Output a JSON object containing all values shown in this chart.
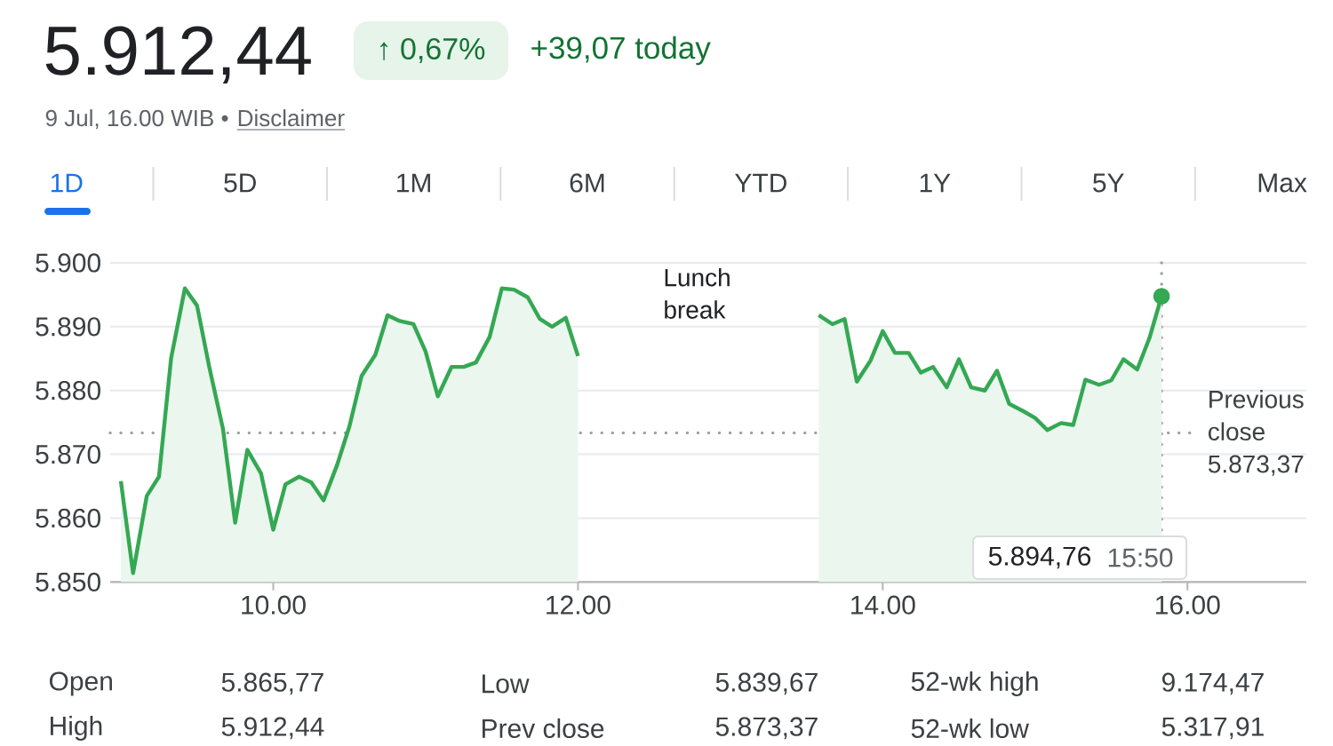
{
  "chart_data": {
    "type": "area",
    "title": "5.912,44",
    "subtitle": "+39,07 today",
    "annotations": [
      "↑ 0,67%",
      "9 Jul, 16.00 WIB •",
      "Disclaimer",
      "1D",
      "5D",
      "1M",
      "6M",
      "YTD",
      "1Y",
      "5Y",
      "Max",
      "Lunch break",
      "5.894,76",
      "15:50",
      "Open",
      "5.865,77",
      "Low",
      "5.839,67",
      "52-wk high",
      "9.174,47",
      "High",
      "5.912,44",
      "Prev close",
      "5.873,37",
      "52-wk low",
      "5.317,91"
    ],
    "series": [
      {
        "color": "#34a853",
        "x": [
          9.0,
          9.08,
          9.17,
          9.25,
          9.33,
          9.42,
          9.5,
          9.58,
          9.67,
          9.75,
          9.83,
          9.92,
          10.0,
          10.08,
          10.17,
          10.25,
          10.33,
          10.42,
          10.5,
          10.58,
          10.67,
          10.75,
          10.83,
          10.92,
          11.0,
          11.08,
          11.17,
          11.25,
          11.33,
          11.42,
          11.5,
          11.58,
          11.67,
          11.75,
          11.83,
          11.92,
          12.0
        ],
        "values": [
          5865.8,
          5851.4,
          5863.5,
          5866.5,
          5885.1,
          5896.0,
          5893.3,
          5883.7,
          5874.0,
          5859.3,
          5870.7,
          5867.0,
          5858.2,
          5865.3,
          5866.5,
          5865.6,
          5862.8,
          5868.4,
          5874.4,
          5882.3,
          5885.6,
          5891.8,
          5890.9,
          5890.4,
          5886.1,
          5879.1,
          5883.7,
          5883.7,
          5884.4,
          5888.4,
          5896.0,
          5895.8,
          5894.6,
          5891.2,
          5890.0,
          5891.4,
          5885.4
        ]
      },
      {
        "color": "#34a853",
        "x": [
          13.58,
          13.67,
          13.75,
          13.83,
          13.92,
          14.0,
          14.08,
          14.17,
          14.25,
          14.33,
          14.42,
          14.5,
          14.58,
          14.67,
          14.75,
          14.83,
          14.92,
          15.0,
          15.08,
          15.17,
          15.25,
          15.33,
          15.42,
          15.5,
          15.58,
          15.67,
          15.75,
          15.83
        ],
        "values": [
          5891.8,
          5890.4,
          5891.2,
          5881.4,
          5884.7,
          5889.3,
          5885.9,
          5885.9,
          5882.8,
          5883.7,
          5880.5,
          5884.9,
          5880.5,
          5880.0,
          5883.1,
          5877.9,
          5876.8,
          5875.7,
          5873.8,
          5874.9,
          5874.6,
          5881.7,
          5880.9,
          5881.6,
          5884.9,
          5883.3,
          5888.2,
          5894.76
        ]
      },
      {
        "type": "scatter",
        "color": "#34a853",
        "marker": "circle",
        "x": [
          15.83
        ],
        "values": [
          5894.76
        ]
      }
    ],
    "xlim": [
      8.93,
      16.78
    ],
    "ylim": [
      5850,
      5900
    ],
    "xticks": [
      {
        "value": 10,
        "label": "10.00"
      },
      {
        "value": 12,
        "label": "12.00"
      },
      {
        "value": 14,
        "label": "14.00"
      },
      {
        "value": 16,
        "label": "16.00"
      }
    ],
    "yticks": [
      {
        "value": 5850,
        "label": "5.850"
      },
      {
        "value": 5860,
        "label": "5.860"
      },
      {
        "value": 5870,
        "label": "5.870"
      },
      {
        "value": 5880,
        "label": "5.880"
      },
      {
        "value": 5890,
        "label": "5.890"
      },
      {
        "value": 5900,
        "label": "5.900"
      }
    ],
    "grid": "y",
    "ref_lines": [
      {
        "axis": "y",
        "value": 5873.37,
        "label": "Previous close 5.873,37",
        "color": "#9aa0a6",
        "line_style": "dotted"
      },
      {
        "axis": "x",
        "value": 15.83,
        "color": "#9aa0a6",
        "line_style": "dotted"
      }
    ]
  }
}
